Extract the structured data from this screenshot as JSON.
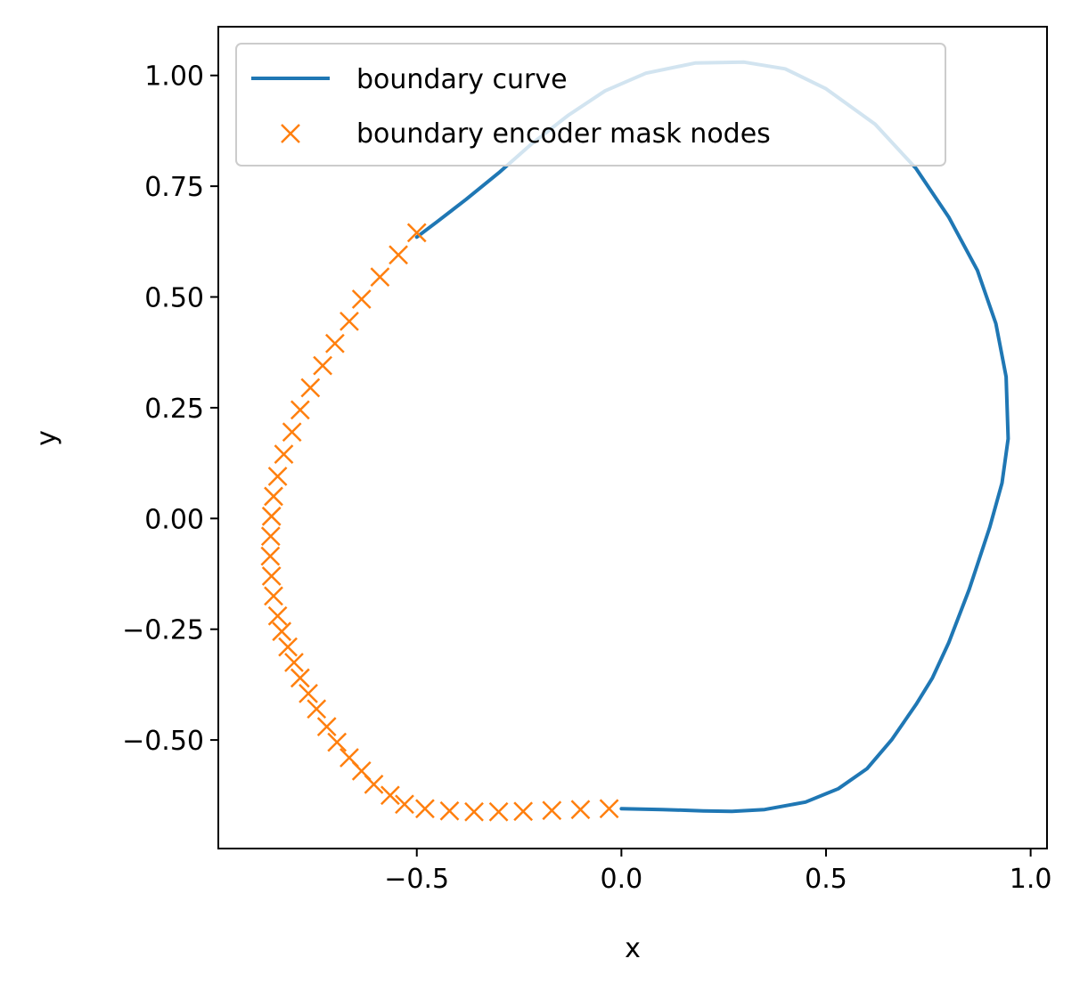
{
  "chart_data": {
    "type": "line",
    "xlabel": "x",
    "ylabel": "y",
    "xlim": [
      -0.985,
      1.04
    ],
    "ylim": [
      -0.745,
      1.11
    ],
    "xticks": [
      {
        "value": -0.5,
        "label": "−0.5"
      },
      {
        "value": 0.0,
        "label": "0.0"
      },
      {
        "value": 0.5,
        "label": "0.5"
      },
      {
        "value": 1.0,
        "label": "1.0"
      }
    ],
    "yticks": [
      {
        "value": 1.0,
        "label": "1.00"
      },
      {
        "value": 0.75,
        "label": "0.75"
      },
      {
        "value": 0.5,
        "label": "0.50"
      },
      {
        "value": 0.25,
        "label": "0.25"
      },
      {
        "value": 0.0,
        "label": "0.00"
      },
      {
        "value": -0.25,
        "label": "−0.25"
      },
      {
        "value": -0.5,
        "label": "−0.50"
      }
    ],
    "legend_position": "upper-left",
    "grid": false,
    "series": [
      {
        "name": "boundary curve",
        "color": "#1f77b4",
        "style": "line",
        "x": [
          0.0,
          0.1,
          0.2,
          0.27,
          0.35,
          0.45,
          0.53,
          0.6,
          0.66,
          0.72,
          0.76,
          0.8,
          0.85,
          0.9,
          0.93,
          0.945,
          0.94,
          0.915,
          0.87,
          0.8,
          0.72,
          0.62,
          0.5,
          0.4,
          0.3,
          0.18,
          0.06,
          -0.04,
          -0.13,
          -0.22,
          -0.3,
          -0.38,
          -0.45,
          -0.5
        ],
        "y": [
          -0.655,
          -0.657,
          -0.66,
          -0.661,
          -0.657,
          -0.64,
          -0.61,
          -0.565,
          -0.5,
          -0.42,
          -0.36,
          -0.28,
          -0.16,
          -0.02,
          0.08,
          0.18,
          0.32,
          0.44,
          0.56,
          0.68,
          0.79,
          0.89,
          0.97,
          1.015,
          1.03,
          1.028,
          1.005,
          0.965,
          0.91,
          0.845,
          0.78,
          0.72,
          0.67,
          0.635
        ]
      },
      {
        "name": "boundary encoder mask nodes",
        "color": "#ff7f0e",
        "style": "marker-x",
        "x": [
          -0.5,
          -0.545,
          -0.59,
          -0.635,
          -0.665,
          -0.7,
          -0.73,
          -0.76,
          -0.785,
          -0.805,
          -0.825,
          -0.84,
          -0.85,
          -0.855,
          -0.857,
          -0.858,
          -0.855,
          -0.85,
          -0.84,
          -0.83,
          -0.815,
          -0.8,
          -0.785,
          -0.765,
          -0.745,
          -0.72,
          -0.695,
          -0.665,
          -0.635,
          -0.605,
          -0.565,
          -0.53,
          -0.48,
          -0.42,
          -0.36,
          -0.3,
          -0.24,
          -0.17,
          -0.1,
          -0.03
        ],
        "y": [
          0.645,
          0.595,
          0.545,
          0.495,
          0.445,
          0.395,
          0.345,
          0.295,
          0.245,
          0.195,
          0.145,
          0.095,
          0.05,
          0.005,
          -0.04,
          -0.085,
          -0.13,
          -0.175,
          -0.22,
          -0.255,
          -0.29,
          -0.325,
          -0.36,
          -0.395,
          -0.43,
          -0.47,
          -0.505,
          -0.54,
          -0.57,
          -0.6,
          -0.625,
          -0.645,
          -0.655,
          -0.66,
          -0.662,
          -0.662,
          -0.661,
          -0.659,
          -0.657,
          -0.655
        ]
      }
    ]
  }
}
